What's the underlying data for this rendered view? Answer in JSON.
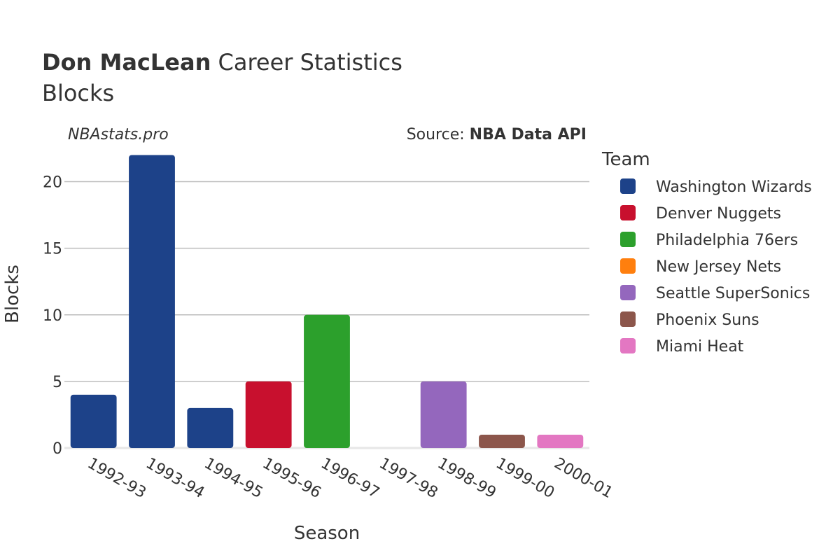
{
  "title": {
    "bold": "Don MacLean",
    "rest": " Career Statistics",
    "subtitle": "Blocks"
  },
  "watermark": "NBAstats.pro",
  "source": {
    "prefix": "Source: ",
    "name": "NBA Data API"
  },
  "legend_title": "Team",
  "chart_data": {
    "type": "bar",
    "xlabel": "Season",
    "ylabel": "Blocks",
    "ylim": [
      0,
      22.5
    ],
    "yticks": [
      0,
      5,
      10,
      15,
      20
    ],
    "grid": true,
    "legend_position": "right",
    "categories": [
      "1992-93",
      "1993-94",
      "1994-95",
      "1995-96",
      "1996-97",
      "1997-98",
      "1998-99",
      "1999-00",
      "2000-01"
    ],
    "bars": [
      {
        "season": "1992-93",
        "team": "Washington Wizards",
        "value": 4
      },
      {
        "season": "1993-94",
        "team": "Washington Wizards",
        "value": 22
      },
      {
        "season": "1994-95",
        "team": "Washington Wizards",
        "value": 3
      },
      {
        "season": "1995-96",
        "team": "Denver Nuggets",
        "value": 5
      },
      {
        "season": "1996-97",
        "team": "Philadelphia 76ers",
        "value": 10
      },
      {
        "season": "1997-98",
        "team": "New Jersey Nets",
        "value": 0
      },
      {
        "season": "1998-99",
        "team": "Seattle SuperSonics",
        "value": 5
      },
      {
        "season": "1999-00",
        "team": "Phoenix Suns",
        "value": 1
      },
      {
        "season": "2000-01",
        "team": "Miami Heat",
        "value": 1
      }
    ],
    "teams": [
      {
        "name": "Washington Wizards",
        "color": "#1d4289"
      },
      {
        "name": "Denver Nuggets",
        "color": "#c8102e"
      },
      {
        "name": "Philadelphia 76ers",
        "color": "#2ca02c"
      },
      {
        "name": "New Jersey Nets",
        "color": "#ff7f0e"
      },
      {
        "name": "Seattle SuperSonics",
        "color": "#9467bd"
      },
      {
        "name": "Phoenix Suns",
        "color": "#8c564b"
      },
      {
        "name": "Miami Heat",
        "color": "#e377c2"
      }
    ]
  }
}
